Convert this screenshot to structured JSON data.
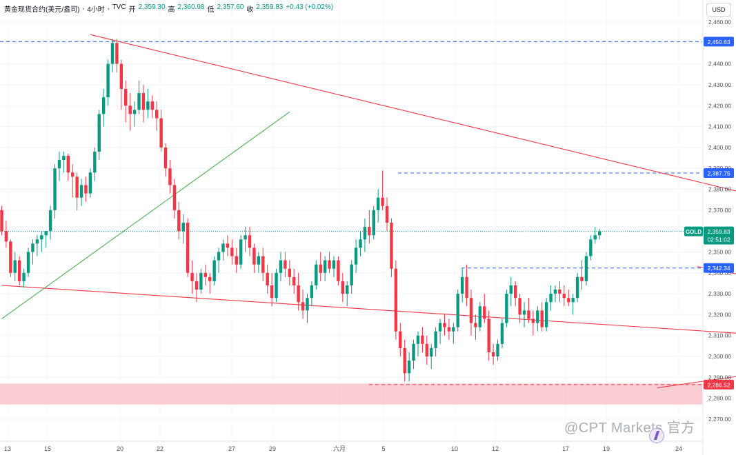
{
  "header": {
    "symbol": "黄金现货合约(美元/盎司)",
    "interval": "4小时",
    "source": "TVC",
    "open_label": "开",
    "open": "2,359.30",
    "high_label": "高",
    "high": "2,360.98",
    "low_label": "低",
    "low": "2,357.60",
    "close_label": "收",
    "close": "2,359.83",
    "change": "+0.43 (+0.02%)"
  },
  "currency_button": "USD",
  "watermark": "@CPT Markets 官方",
  "colors": {
    "up": "#089981",
    "down": "#f23645",
    "trendline": "#f23645",
    "support_line": "#4caf50",
    "level": "#2962ff",
    "zone": "#f8c8cc",
    "price_tag": "#089981"
  },
  "chart_data": {
    "type": "candlestick",
    "title": "黄金现货合约(美元/盎司), 4小时, TVC",
    "ylim": [
      2265,
      2465
    ],
    "y_ticks": [
      2270,
      2280,
      2290,
      2300,
      2310,
      2320,
      2330,
      2340,
      2350,
      2360,
      2370,
      2380,
      2390,
      2400,
      2410,
      2420,
      2430,
      2440,
      2450,
      2460
    ],
    "x_ticks": [
      "13",
      "15",
      "20",
      "22",
      "27",
      "29",
      "六月",
      "5",
      "10",
      "12",
      "17",
      "19",
      "24"
    ],
    "levels": [
      {
        "label": "2,450.63",
        "value": 2450.63,
        "style": "dashed",
        "color": "#2962ff"
      },
      {
        "label": "2,387.75",
        "value": 2387.75,
        "style": "dashed",
        "color": "#2962ff"
      },
      {
        "label": "2,342.34",
        "value": 2342.34,
        "style": "dashed",
        "color": "#2962ff"
      },
      {
        "label": "2,286.52",
        "value": 2286.52,
        "style": "dashed",
        "color": "#f23645"
      }
    ],
    "zone": {
      "from": 2277,
      "to": 2287
    },
    "current_price": {
      "label": "GOLD",
      "value": "2,359.83",
      "price": 2359.83,
      "countdown": "02:51:02"
    },
    "trendlines": [
      {
        "color": "#f23645",
        "from": [
          20,
          2454
        ],
        "to": [
          248,
          2337
        ]
      },
      {
        "color": "#f23645",
        "from": [
          0,
          2334
        ],
        "to": [
          167,
          2311
        ]
      },
      {
        "color": "#f23645",
        "from": [
          148,
          2285
        ],
        "to": [
          221,
          2307
        ]
      },
      {
        "color": "#f23645",
        "from": [
          157,
          2343
        ],
        "to": [
          201,
          2326
        ]
      },
      {
        "color": "#4caf50",
        "from": [
          0,
          2318
        ],
        "to": [
          65,
          2417
        ]
      }
    ],
    "candles": [
      [
        2370,
        2372,
        2358,
        2360
      ],
      [
        2360,
        2365,
        2352,
        2355
      ],
      [
        2355,
        2356,
        2338,
        2340
      ],
      [
        2340,
        2350,
        2336,
        2346
      ],
      [
        2346,
        2348,
        2334,
        2336
      ],
      [
        2336,
        2342,
        2333,
        2340
      ],
      [
        2340,
        2352,
        2338,
        2350
      ],
      [
        2350,
        2356,
        2344,
        2354
      ],
      [
        2354,
        2358,
        2348,
        2356
      ],
      [
        2356,
        2360,
        2350,
        2358
      ],
      [
        2358,
        2360,
        2352,
        2360
      ],
      [
        2360,
        2372,
        2356,
        2370
      ],
      [
        2370,
        2392,
        2366,
        2390
      ],
      [
        2390,
        2398,
        2384,
        2394
      ],
      [
        2394,
        2398,
        2388,
        2396
      ],
      [
        2396,
        2397,
        2384,
        2388
      ],
      [
        2388,
        2392,
        2376,
        2386
      ],
      [
        2386,
        2388,
        2370,
        2376
      ],
      [
        2376,
        2385,
        2372,
        2382
      ],
      [
        2382,
        2386,
        2374,
        2378
      ],
      [
        2378,
        2390,
        2376,
        2388
      ],
      [
        2388,
        2400,
        2384,
        2398
      ],
      [
        2398,
        2418,
        2394,
        2416
      ],
      [
        2416,
        2428,
        2410,
        2424
      ],
      [
        2424,
        2442,
        2420,
        2440
      ],
      [
        2440,
        2452,
        2436,
        2450
      ],
      [
        2450,
        2452,
        2436,
        2440
      ],
      [
        2440,
        2442,
        2418,
        2428
      ],
      [
        2428,
        2432,
        2412,
        2420
      ],
      [
        2420,
        2426,
        2408,
        2416
      ],
      [
        2416,
        2422,
        2410,
        2418
      ],
      [
        2418,
        2432,
        2416,
        2426
      ],
      [
        2426,
        2430,
        2412,
        2418
      ],
      [
        2418,
        2428,
        2414,
        2422
      ],
      [
        2422,
        2425,
        2414,
        2418
      ],
      [
        2418,
        2422,
        2408,
        2414
      ],
      [
        2414,
        2418,
        2398,
        2400
      ],
      [
        2400,
        2402,
        2386,
        2390
      ],
      [
        2390,
        2394,
        2378,
        2382
      ],
      [
        2382,
        2385,
        2366,
        2370
      ],
      [
        2370,
        2374,
        2356,
        2360
      ],
      [
        2360,
        2368,
        2354,
        2364
      ],
      [
        2364,
        2366,
        2338,
        2340
      ],
      [
        2340,
        2346,
        2330,
        2336
      ],
      [
        2336,
        2340,
        2326,
        2332
      ],
      [
        2332,
        2342,
        2330,
        2340
      ],
      [
        2340,
        2344,
        2334,
        2338
      ],
      [
        2338,
        2340,
        2330,
        2336
      ],
      [
        2336,
        2348,
        2334,
        2346
      ],
      [
        2346,
        2352,
        2340,
        2350
      ],
      [
        2350,
        2356,
        2346,
        2354
      ],
      [
        2354,
        2358,
        2348,
        2352
      ],
      [
        2352,
        2356,
        2344,
        2348
      ],
      [
        2348,
        2352,
        2340,
        2344
      ],
      [
        2344,
        2358,
        2342,
        2356
      ],
      [
        2356,
        2362,
        2350,
        2358
      ],
      [
        2358,
        2362,
        2348,
        2352
      ],
      [
        2352,
        2354,
        2340,
        2344
      ],
      [
        2344,
        2350,
        2340,
        2348
      ],
      [
        2348,
        2352,
        2336,
        2340
      ],
      [
        2340,
        2344,
        2330,
        2334
      ],
      [
        2334,
        2340,
        2324,
        2328
      ],
      [
        2328,
        2342,
        2326,
        2340
      ],
      [
        2340,
        2350,
        2336,
        2346
      ],
      [
        2346,
        2350,
        2338,
        2342
      ],
      [
        2342,
        2346,
        2334,
        2338
      ],
      [
        2338,
        2342,
        2330,
        2334
      ],
      [
        2334,
        2340,
        2322,
        2326
      ],
      [
        2326,
        2332,
        2318,
        2322
      ],
      [
        2322,
        2330,
        2316,
        2328
      ],
      [
        2328,
        2336,
        2324,
        2334
      ],
      [
        2334,
        2346,
        2332,
        2344
      ],
      [
        2344,
        2350,
        2336,
        2340
      ],
      [
        2340,
        2348,
        2336,
        2346
      ],
      [
        2346,
        2350,
        2340,
        2342
      ],
      [
        2342,
        2348,
        2338,
        2346
      ],
      [
        2346,
        2348,
        2334,
        2336
      ],
      [
        2336,
        2340,
        2326,
        2330
      ],
      [
        2330,
        2336,
        2324,
        2334
      ],
      [
        2334,
        2346,
        2330,
        2344
      ],
      [
        2344,
        2356,
        2340,
        2352
      ],
      [
        2352,
        2360,
        2348,
        2356
      ],
      [
        2356,
        2366,
        2350,
        2362
      ],
      [
        2362,
        2370,
        2354,
        2358
      ],
      [
        2358,
        2372,
        2356,
        2370
      ],
      [
        2370,
        2380,
        2364,
        2376
      ],
      [
        2376,
        2389,
        2370,
        2372
      ],
      [
        2372,
        2376,
        2360,
        2364
      ],
      [
        2364,
        2366,
        2338,
        2342
      ],
      [
        2342,
        2346,
        2308,
        2312
      ],
      [
        2312,
        2316,
        2300,
        2304
      ],
      [
        2304,
        2308,
        2288,
        2292
      ],
      [
        2292,
        2302,
        2288,
        2298
      ],
      [
        2298,
        2308,
        2294,
        2306
      ],
      [
        2306,
        2312,
        2300,
        2310
      ],
      [
        2310,
        2314,
        2302,
        2306
      ],
      [
        2306,
        2310,
        2296,
        2300
      ],
      [
        2300,
        2306,
        2294,
        2304
      ],
      [
        2304,
        2314,
        2300,
        2312
      ],
      [
        2312,
        2318,
        2306,
        2316
      ],
      [
        2316,
        2320,
        2310,
        2314
      ],
      [
        2314,
        2318,
        2308,
        2312
      ],
      [
        2312,
        2316,
        2306,
        2314
      ],
      [
        2314,
        2332,
        2312,
        2330
      ],
      [
        2330,
        2342,
        2326,
        2338
      ],
      [
        2338,
        2344,
        2324,
        2328
      ],
      [
        2328,
        2332,
        2310,
        2316
      ],
      [
        2316,
        2320,
        2308,
        2314
      ],
      [
        2314,
        2326,
        2312,
        2324
      ],
      [
        2324,
        2330,
        2316,
        2318
      ],
      [
        2318,
        2322,
        2298,
        2302
      ],
      [
        2302,
        2306,
        2296,
        2300
      ],
      [
        2300,
        2308,
        2298,
        2306
      ],
      [
        2306,
        2318,
        2304,
        2316
      ],
      [
        2316,
        2332,
        2314,
        2330
      ],
      [
        2330,
        2338,
        2324,
        2334
      ],
      [
        2334,
        2336,
        2324,
        2328
      ],
      [
        2328,
        2330,
        2316,
        2320
      ],
      [
        2320,
        2326,
        2314,
        2322
      ],
      [
        2322,
        2328,
        2316,
        2318
      ],
      [
        2318,
        2322,
        2310,
        2316
      ],
      [
        2316,
        2324,
        2312,
        2322
      ],
      [
        2322,
        2326,
        2312,
        2314
      ],
      [
        2314,
        2328,
        2312,
        2326
      ],
      [
        2326,
        2334,
        2322,
        2330
      ],
      [
        2330,
        2334,
        2326,
        2332
      ],
      [
        2332,
        2336,
        2326,
        2330
      ],
      [
        2330,
        2334,
        2324,
        2328
      ],
      [
        2328,
        2332,
        2324,
        2326
      ],
      [
        2326,
        2330,
        2320,
        2328
      ],
      [
        2328,
        2340,
        2326,
        2338
      ],
      [
        2338,
        2346,
        2332,
        2336
      ],
      [
        2336,
        2350,
        2334,
        2348
      ],
      [
        2348,
        2358,
        2346,
        2356
      ],
      [
        2356,
        2362,
        2354,
        2358
      ],
      [
        2358,
        2361,
        2356,
        2359.83
      ]
    ]
  }
}
